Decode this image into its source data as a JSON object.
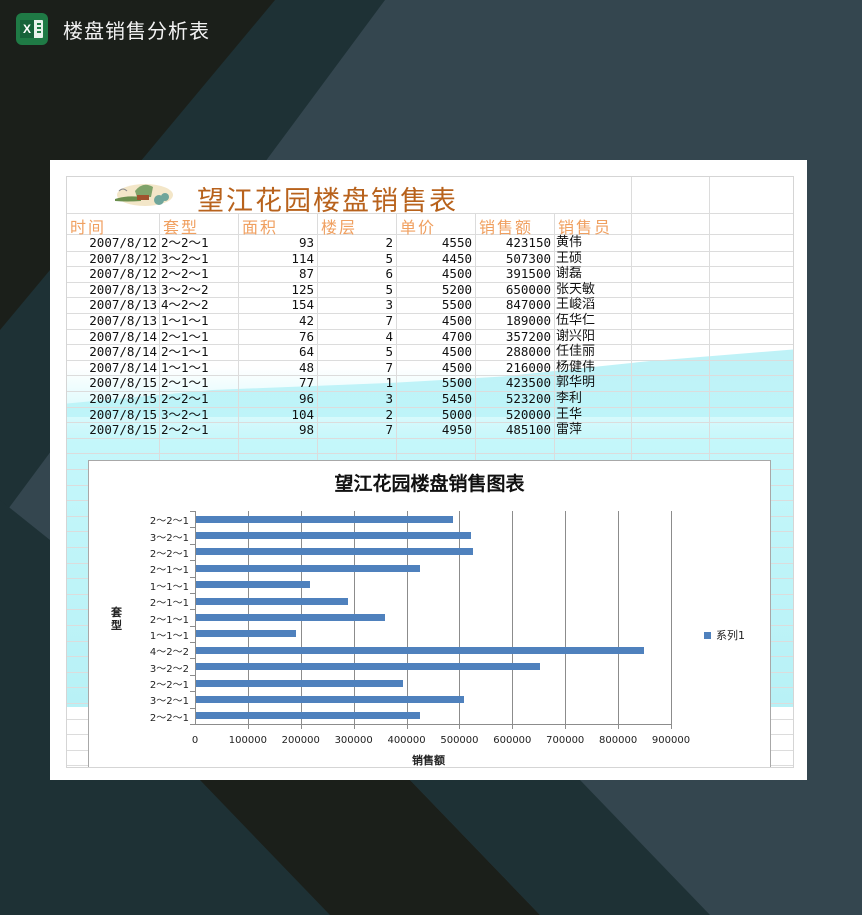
{
  "header": {
    "app_icon": "excel-icon",
    "title": "楼盘销售分析表"
  },
  "colors": {
    "bg_dark": "#1b1f1a",
    "bg_mid": "#1e3135",
    "bg_light": "#34464f",
    "title_orange": "#b8621c",
    "header_orange": "#f0a060",
    "bar_blue": "#4f81bd"
  },
  "sheet": {
    "title": "望江花园楼盘销售表",
    "columns": [
      "时间",
      "套型",
      "面积",
      "楼层",
      "单价",
      "销售额",
      "销售员"
    ],
    "rows": [
      [
        "2007/8/12",
        "2～2～1",
        "93",
        "2",
        "4550",
        "423150",
        "黄伟"
      ],
      [
        "2007/8/12",
        "3～2～1",
        "114",
        "5",
        "4450",
        "507300",
        "王硕"
      ],
      [
        "2007/8/12",
        "2～2～1",
        "87",
        "6",
        "4500",
        "391500",
        "谢磊"
      ],
      [
        "2007/8/13",
        "3～2～2",
        "125",
        "5",
        "5200",
        "650000",
        "张天敏"
      ],
      [
        "2007/8/13",
        "4～2～2",
        "154",
        "3",
        "5500",
        "847000",
        "王峻滔"
      ],
      [
        "2007/8/13",
        "1～1～1",
        "42",
        "7",
        "4500",
        "189000",
        "伍华仁"
      ],
      [
        "2007/8/14",
        "2～1～1",
        "76",
        "4",
        "4700",
        "357200",
        "谢兴阳"
      ],
      [
        "2007/8/14",
        "2～1～1",
        "64",
        "5",
        "4500",
        "288000",
        "任佳丽"
      ],
      [
        "2007/8/14",
        "1～1～1",
        "48",
        "7",
        "4500",
        "216000",
        "杨健伟"
      ],
      [
        "2007/8/15",
        "2～1～1",
        "77",
        "1",
        "5500",
        "423500",
        "郭华明"
      ],
      [
        "2007/8/15",
        "2～2～1",
        "96",
        "3",
        "5450",
        "523200",
        "李利"
      ],
      [
        "2007/8/15",
        "3～2～1",
        "104",
        "2",
        "5000",
        "520000",
        "王华"
      ],
      [
        "2007/8/15",
        "2～2～1",
        "98",
        "7",
        "4950",
        "485100",
        "雷萍"
      ]
    ]
  },
  "chart_data": {
    "type": "bar",
    "orientation": "horizontal",
    "title": "望江花园楼盘销售图表",
    "xlabel": "销售额",
    "ylabel": "套型",
    "xlim": [
      0,
      900000
    ],
    "xticks": [
      "0",
      "100000",
      "200000",
      "300000",
      "400000",
      "500000",
      "600000",
      "700000",
      "800000",
      "900000"
    ],
    "categories": [
      "2～2～1",
      "3～2～1",
      "2～2～1",
      "3～2～2",
      "4～2～2",
      "1～1～1",
      "2～1～1",
      "2～1～1",
      "1～1～1",
      "2～1～1",
      "2～2～1",
      "3～2～1",
      "2～2～1"
    ],
    "series": [
      {
        "name": "系列1",
        "values": [
          423150,
          507300,
          391500,
          650000,
          847000,
          189000,
          357200,
          288000,
          216000,
          423500,
          523200,
          520000,
          485100
        ]
      }
    ],
    "category_order": "bottom-to-top",
    "grid": "vertical major gridlines",
    "legend_position": "right"
  }
}
